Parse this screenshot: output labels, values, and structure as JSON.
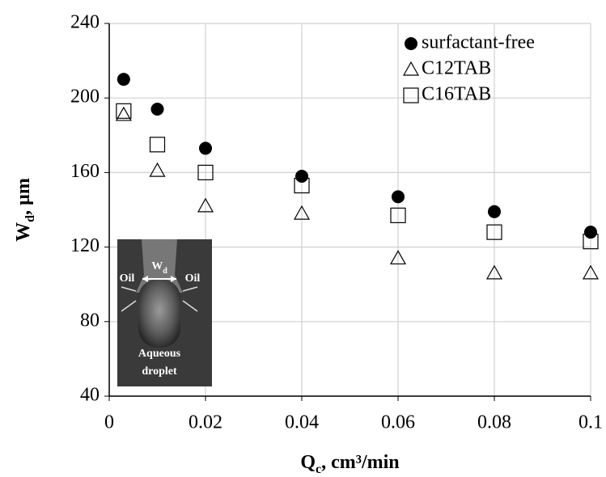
{
  "chart_data": {
    "type": "scatter",
    "xlabel": [
      "Q",
      "c",
      ", cm³/min"
    ],
    "ylabel": [
      "W",
      "d",
      ", µm"
    ],
    "x": [
      0.003,
      0.01,
      0.02,
      0.04,
      0.06,
      0.08,
      0.1
    ],
    "series": [
      {
        "name": "surfactant-free",
        "color": "#000000",
        "marker": "circle",
        "values": [
          210,
          194,
          173,
          158,
          147,
          139,
          128
        ]
      },
      {
        "name": "C12TAB",
        "color": "#000000",
        "marker": "triangle",
        "values": [
          191,
          161,
          142,
          138,
          114,
          106,
          106
        ]
      },
      {
        "name": "C16TAB",
        "color": "#000000",
        "marker": "square",
        "values": [
          193,
          175,
          160,
          153,
          137,
          128,
          123
        ]
      }
    ],
    "xlim": [
      0,
      0.1
    ],
    "ylim": [
      40,
      240
    ],
    "xticks": [
      0,
      0.02,
      0.04,
      0.06,
      0.08,
      0.1
    ],
    "yticks": [
      40,
      80,
      120,
      160,
      200,
      240
    ],
    "grid": true,
    "legend": "top-right",
    "inset": {
      "width_label": [
        "W",
        "d"
      ],
      "left": "Oil",
      "right": "Oil",
      "caption": [
        "Aqueous",
        "droplet"
      ]
    }
  }
}
